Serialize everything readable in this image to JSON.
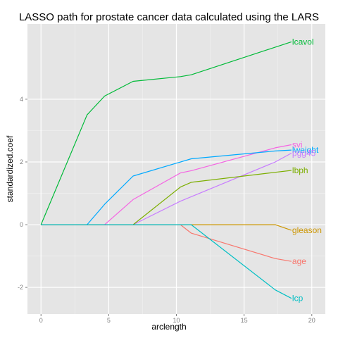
{
  "chart_data": {
    "type": "line",
    "title": "LASSO path for prostate cancer data calculated using the LARS",
    "xlabel": "arclength",
    "ylabel": "standardized.coef",
    "xlim": [
      -1,
      21
    ],
    "ylim": [
      -2.85,
      6.4
    ],
    "xticks": [
      0,
      5,
      10,
      15,
      20
    ],
    "yticks": [
      -2,
      0,
      2,
      4
    ],
    "xtick_labels": [
      "0",
      "5",
      "10",
      "15",
      "20"
    ],
    "ytick_labels": [
      "-2",
      "0",
      "2",
      "4"
    ],
    "grid": true,
    "legend": "direct labels at line ends",
    "background": "#e5e5e5",
    "series": [
      {
        "name": "lcavol",
        "color": "#00BA38",
        "points": [
          [
            0,
            0
          ],
          [
            3.4,
            3.5
          ],
          [
            4.7,
            4.1
          ],
          [
            6.8,
            4.57
          ],
          [
            10.3,
            4.72
          ],
          [
            11.1,
            4.78
          ],
          [
            18.5,
            5.83
          ]
        ]
      },
      {
        "name": "svi",
        "color": "#F564E3",
        "points": [
          [
            0,
            0
          ],
          [
            4.7,
            0
          ],
          [
            6.8,
            0.8
          ],
          [
            10.3,
            1.65
          ],
          [
            11.1,
            1.72
          ],
          [
            17.3,
            2.45
          ],
          [
            18.5,
            2.55
          ]
        ]
      },
      {
        "name": "lweight",
        "color": "#00A9FF",
        "points": [
          [
            0,
            0
          ],
          [
            3.4,
            0
          ],
          [
            4.7,
            0.65
          ],
          [
            6.8,
            1.55
          ],
          [
            11.1,
            2.1
          ],
          [
            17.3,
            2.35
          ],
          [
            18.5,
            2.38
          ]
        ]
      },
      {
        "name": "pgg45",
        "color": "#C77CFF",
        "points": [
          [
            0,
            0
          ],
          [
            6.8,
            0
          ],
          [
            10.3,
            0.75
          ],
          [
            17.3,
            2.0
          ],
          [
            18.5,
            2.28
          ]
        ]
      },
      {
        "name": "lbph",
        "color": "#7CAE00",
        "points": [
          [
            0,
            0
          ],
          [
            6.8,
            0
          ],
          [
            10.3,
            1.2
          ],
          [
            11.1,
            1.35
          ],
          [
            17.3,
            1.67
          ],
          [
            18.5,
            1.73
          ]
        ]
      },
      {
        "name": "gleason",
        "color": "#CD9600",
        "points": [
          [
            0,
            0
          ],
          [
            17.3,
            0
          ],
          [
            18.5,
            -0.18
          ]
        ]
      },
      {
        "name": "age",
        "color": "#F8766D",
        "points": [
          [
            0,
            0
          ],
          [
            10.3,
            0
          ],
          [
            11.1,
            -0.27
          ],
          [
            17.3,
            -1.08
          ],
          [
            18.5,
            -1.17
          ]
        ]
      },
      {
        "name": "lcp",
        "color": "#00BFC4",
        "points": [
          [
            0,
            0
          ],
          [
            11.1,
            0
          ],
          [
            17.3,
            -2.08
          ],
          [
            18.5,
            -2.35
          ]
        ]
      }
    ]
  }
}
